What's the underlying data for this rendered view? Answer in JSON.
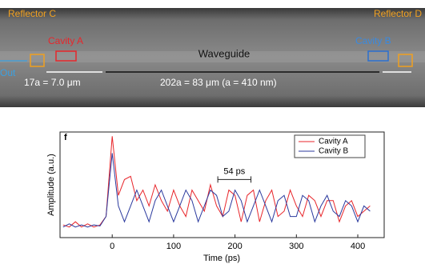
{
  "micrograph": {
    "reflector_c": "Reflector C",
    "reflector_d": "Reflector D",
    "cavity_a": "Cavity A",
    "cavity_b": "Cavity B",
    "waveguide": "Waveguide",
    "out": "Out",
    "short_span": "17a = 7.0 μm",
    "long_span": "202a = 83 μm (a = 410 nm)"
  },
  "chart_data": {
    "type": "line",
    "panel": "f",
    "xlabel": "Time (ps)",
    "ylabel": "Amplitude (a.u.)",
    "x": [
      -80,
      -70,
      -60,
      -50,
      -40,
      -30,
      -20,
      -10,
      0,
      10,
      20,
      30,
      40,
      50,
      60,
      70,
      80,
      90,
      100,
      110,
      120,
      130,
      140,
      150,
      160,
      170,
      180,
      190,
      200,
      210,
      220,
      230,
      240,
      250,
      260,
      270,
      280,
      290,
      300,
      310,
      320,
      330,
      340,
      350,
      360,
      370,
      380,
      390,
      400,
      410,
      420
    ],
    "series": [
      {
        "name": "Cavity A",
        "color": "#e8262b",
        "values": [
          0.12,
          0.1,
          0.15,
          0.1,
          0.13,
          0.1,
          0.12,
          0.2,
          0.96,
          0.4,
          0.55,
          0.58,
          0.35,
          0.45,
          0.3,
          0.5,
          0.35,
          0.25,
          0.45,
          0.3,
          0.2,
          0.45,
          0.35,
          0.25,
          0.5,
          0.3,
          0.2,
          0.45,
          0.4,
          0.15,
          0.4,
          0.45,
          0.15,
          0.35,
          0.45,
          0.2,
          0.25,
          0.45,
          0.3,
          0.2,
          0.4,
          0.35,
          0.2,
          0.35,
          0.35,
          0.15,
          0.3,
          0.35,
          0.2,
          0.25,
          0.3
        ]
      },
      {
        "name": "Cavity B",
        "color": "#2b3a9e",
        "values": [
          0.1,
          0.13,
          0.1,
          0.12,
          0.1,
          0.12,
          0.11,
          0.2,
          0.8,
          0.3,
          0.15,
          0.3,
          0.45,
          0.3,
          0.15,
          0.35,
          0.45,
          0.3,
          0.15,
          0.3,
          0.45,
          0.35,
          0.15,
          0.3,
          0.45,
          0.4,
          0.2,
          0.25,
          0.45,
          0.35,
          0.15,
          0.3,
          0.45,
          0.3,
          0.15,
          0.35,
          0.4,
          0.2,
          0.2,
          0.4,
          0.35,
          0.15,
          0.3,
          0.4,
          0.25,
          0.2,
          0.35,
          0.3,
          0.15,
          0.3,
          0.25
        ]
      }
    ],
    "xlim": [
      -85,
      443
    ],
    "ylim": [
      0,
      1
    ],
    "xticks": [
      0,
      100,
      200,
      300,
      400
    ],
    "annotations": [
      {
        "text": "54 ps",
        "x_start": 172,
        "x_end": 226,
        "y": 0.55
      }
    ],
    "legend": "upper right"
  }
}
